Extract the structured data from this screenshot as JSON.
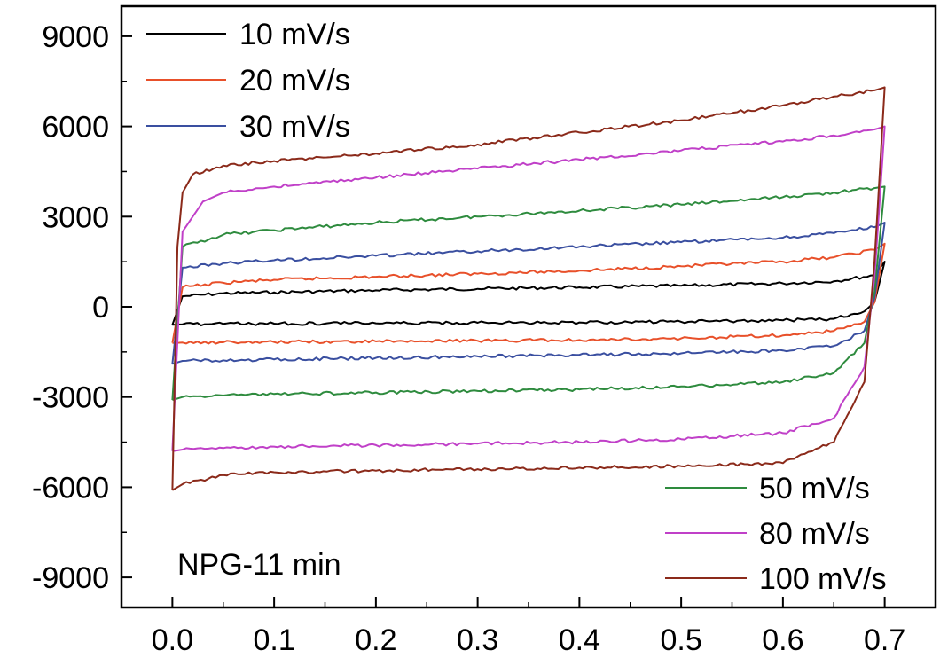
{
  "chart_data": {
    "type": "line",
    "title": "",
    "xlabel": "",
    "ylabel": "",
    "xlim": [
      -0.05,
      0.75
    ],
    "ylim": [
      -10000,
      10000
    ],
    "x_ticks": [
      0.0,
      0.1,
      0.2,
      0.3,
      0.4,
      0.5,
      0.6,
      0.7
    ],
    "x_tick_labels": [
      "0.0",
      "0.1",
      "0.2",
      "0.3",
      "0.4",
      "0.5",
      "0.6",
      "0.7"
    ],
    "y_ticks": [
      9000,
      6000,
      3000,
      0,
      -3000,
      -6000,
      -9000
    ],
    "y_tick_labels": [
      "9000",
      "6000",
      "3000",
      "0",
      "-3000",
      "-6000",
      "-9000"
    ],
    "grid": false,
    "annotation": "NPG-11 min",
    "series": [
      {
        "name": "10 mV/s",
        "color": "#000000",
        "x": [
          0.0,
          0.01,
          0.05,
          0.1,
          0.2,
          0.3,
          0.4,
          0.5,
          0.6,
          0.65,
          0.69,
          0.7,
          0.69,
          0.68,
          0.65,
          0.6,
          0.5,
          0.4,
          0.3,
          0.2,
          0.1,
          0.05,
          0.01,
          0.0
        ],
        "y": [
          -600,
          350,
          450,
          480,
          550,
          600,
          650,
          700,
          780,
          850,
          1050,
          1500,
          150,
          -150,
          -400,
          -450,
          -500,
          -520,
          -530,
          -550,
          -560,
          -570,
          -580,
          -600
        ]
      },
      {
        "name": "20 mV/s",
        "color": "#E8502A",
        "x": [
          0.0,
          0.01,
          0.05,
          0.1,
          0.2,
          0.3,
          0.4,
          0.5,
          0.6,
          0.65,
          0.69,
          0.7,
          0.69,
          0.68,
          0.65,
          0.6,
          0.5,
          0.4,
          0.3,
          0.2,
          0.1,
          0.05,
          0.01,
          0.0
        ],
        "y": [
          -1200,
          650,
          800,
          900,
          1000,
          1100,
          1200,
          1350,
          1500,
          1650,
          1900,
          2100,
          150,
          -500,
          -800,
          -950,
          -1050,
          -1100,
          -1130,
          -1150,
          -1170,
          -1180,
          -1190,
          -1200
        ]
      },
      {
        "name": "30 mV/s",
        "color": "#3A4FA0",
        "x": [
          0.0,
          0.01,
          0.05,
          0.1,
          0.2,
          0.3,
          0.4,
          0.5,
          0.6,
          0.65,
          0.69,
          0.7,
          0.69,
          0.68,
          0.65,
          0.6,
          0.5,
          0.4,
          0.3,
          0.2,
          0.1,
          0.05,
          0.01,
          0.0
        ],
        "y": [
          -1900,
          1300,
          1450,
          1550,
          1700,
          1850,
          2000,
          2150,
          2300,
          2450,
          2650,
          2800,
          300,
          -800,
          -1300,
          -1450,
          -1550,
          -1600,
          -1650,
          -1700,
          -1750,
          -1780,
          -1800,
          -1900
        ]
      },
      {
        "name": "50 mV/s",
        "color": "#2E8B3E",
        "x": [
          0.0,
          0.01,
          0.05,
          0.1,
          0.2,
          0.3,
          0.4,
          0.5,
          0.6,
          0.65,
          0.69,
          0.7,
          0.69,
          0.68,
          0.65,
          0.6,
          0.5,
          0.4,
          0.3,
          0.2,
          0.1,
          0.05,
          0.01,
          0.0
        ],
        "y": [
          -3100,
          2000,
          2400,
          2550,
          2800,
          3000,
          3200,
          3400,
          3650,
          3800,
          3950,
          4000,
          500,
          -1200,
          -2200,
          -2500,
          -2650,
          -2750,
          -2800,
          -2850,
          -2900,
          -2950,
          -3000,
          -3100
        ]
      },
      {
        "name": "80 mV/s",
        "color": "#C040C8",
        "x": [
          0.0,
          0.01,
          0.03,
          0.05,
          0.1,
          0.2,
          0.3,
          0.4,
          0.5,
          0.6,
          0.65,
          0.69,
          0.7,
          0.69,
          0.68,
          0.65,
          0.6,
          0.5,
          0.4,
          0.3,
          0.2,
          0.1,
          0.05,
          0.01,
          0.0
        ],
        "y": [
          -4800,
          2500,
          3500,
          3800,
          4000,
          4300,
          4600,
          4900,
          5200,
          5500,
          5700,
          5900,
          6000,
          1000,
          -2000,
          -3700,
          -4200,
          -4400,
          -4500,
          -4550,
          -4600,
          -4650,
          -4700,
          -4750,
          -4800
        ]
      },
      {
        "name": "100 mV/s",
        "color": "#8B2A1A",
        "x": [
          0.0,
          0.005,
          0.01,
          0.02,
          0.05,
          0.1,
          0.2,
          0.3,
          0.4,
          0.5,
          0.6,
          0.65,
          0.69,
          0.7,
          0.69,
          0.68,
          0.65,
          0.6,
          0.5,
          0.4,
          0.3,
          0.2,
          0.1,
          0.05,
          0.01,
          0.0
        ],
        "y": [
          -6100,
          2000,
          3800,
          4400,
          4700,
          4850,
          5100,
          5400,
          5800,
          6200,
          6700,
          7000,
          7200,
          7300,
          1500,
          -2500,
          -4500,
          -5200,
          -5300,
          -5350,
          -5400,
          -5450,
          -5500,
          -5600,
          -5900,
          -6100
        ]
      }
    ],
    "legend": [
      {
        "group": "top-left",
        "entries": [
          "10 mV/s",
          "20 mV/s",
          "30 mV/s"
        ]
      },
      {
        "group": "bottom-right",
        "entries": [
          "50 mV/s",
          "80 mV/s",
          "100 mV/s"
        ]
      }
    ]
  }
}
